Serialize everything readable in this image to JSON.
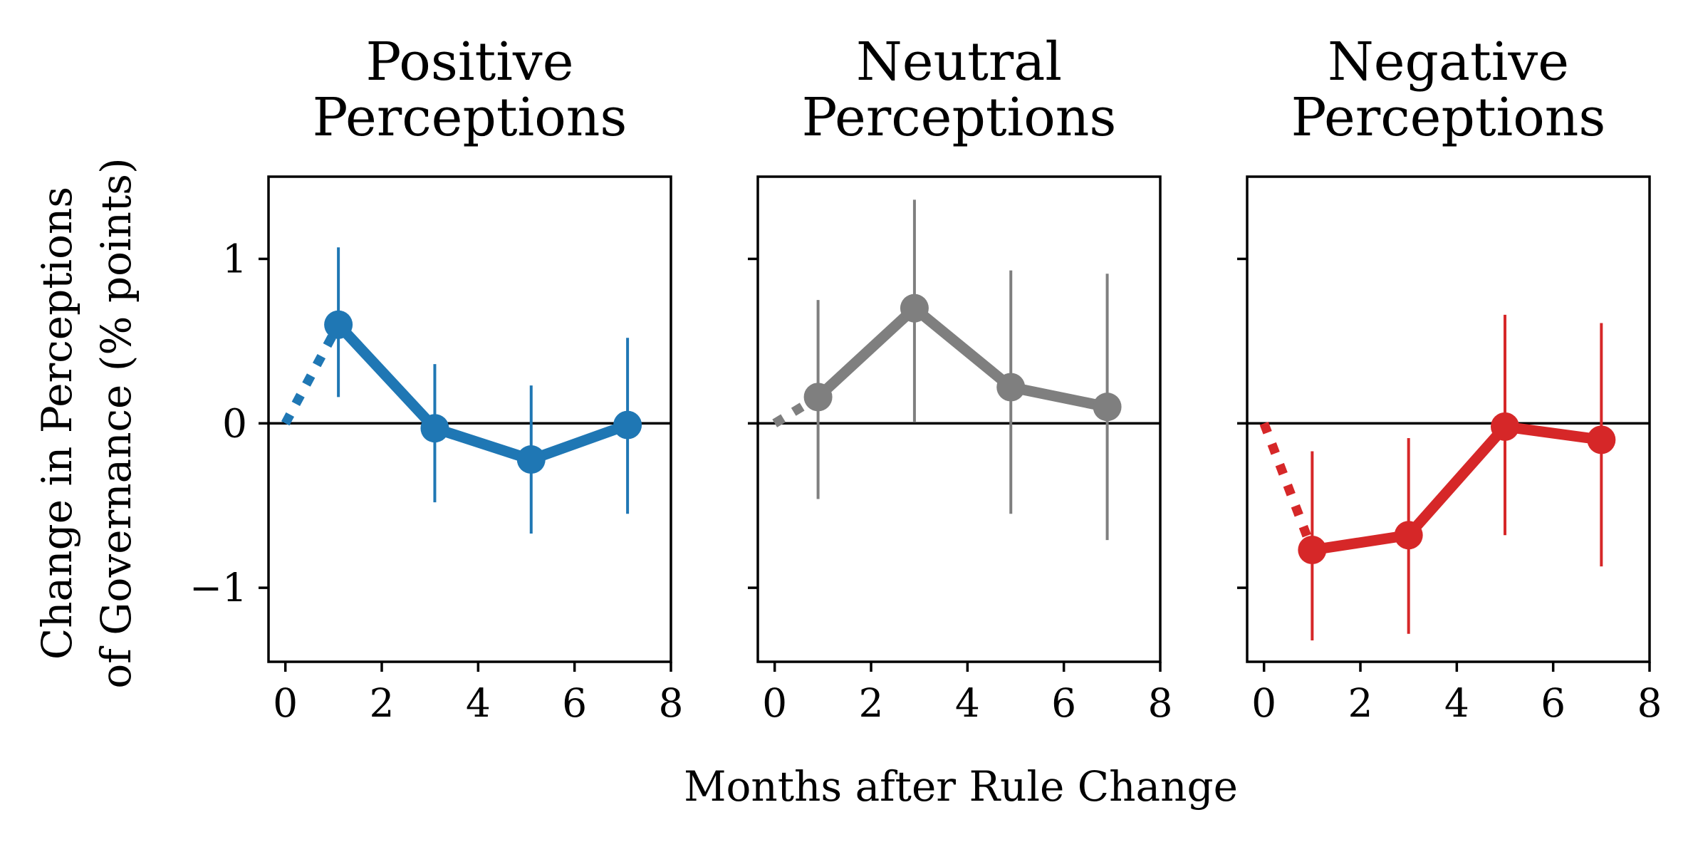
{
  "chart_data": {
    "type": "line",
    "xlabel": "Months after Rule Change",
    "ylabel_lines": [
      "Change in Perceptions",
      "of Governance (% points)"
    ],
    "xlim": [
      -0.35,
      8
    ],
    "ylim": [
      -1.45,
      1.5
    ],
    "xticks": [
      0,
      2,
      4,
      6,
      8
    ],
    "yticks": [
      1,
      0,
      -1
    ],
    "ytick_labels": [
      "1",
      "0",
      "−1"
    ],
    "reference_line_y": 0,
    "grid": false,
    "panels": [
      {
        "title_lines": [
          "Positive",
          "Perceptions"
        ],
        "color": "#1f77b4",
        "origin": {
          "x": 0,
          "y": 0
        },
        "points": [
          {
            "x": 1.1,
            "y": 0.6,
            "lo": 0.16,
            "hi": 1.07
          },
          {
            "x": 3.1,
            "y": -0.03,
            "lo": -0.48,
            "hi": 0.36
          },
          {
            "x": 5.1,
            "y": -0.22,
            "lo": -0.67,
            "hi": 0.23
          },
          {
            "x": 7.1,
            "y": -0.01,
            "lo": -0.55,
            "hi": 0.52
          }
        ]
      },
      {
        "title_lines": [
          "Neutral",
          "Perceptions"
        ],
        "color": "#7f7f7f",
        "origin": {
          "x": 0,
          "y": 0
        },
        "points": [
          {
            "x": 0.9,
            "y": 0.16,
            "lo": -0.46,
            "hi": 0.75
          },
          {
            "x": 2.9,
            "y": 0.7,
            "lo": 0.01,
            "hi": 1.36
          },
          {
            "x": 4.9,
            "y": 0.22,
            "lo": -0.55,
            "hi": 0.93
          },
          {
            "x": 6.9,
            "y": 0.1,
            "lo": -0.71,
            "hi": 0.91
          }
        ]
      },
      {
        "title_lines": [
          "Negative",
          "Perceptions"
        ],
        "color": "#d62728",
        "origin": {
          "x": 0,
          "y": 0
        },
        "points": [
          {
            "x": 1.0,
            "y": -0.77,
            "lo": -1.32,
            "hi": -0.17
          },
          {
            "x": 3.0,
            "y": -0.68,
            "lo": -1.28,
            "hi": -0.09
          },
          {
            "x": 5.0,
            "y": -0.02,
            "lo": -0.68,
            "hi": 0.66
          },
          {
            "x": 7.0,
            "y": -0.1,
            "lo": -0.87,
            "hi": 0.61
          }
        ]
      }
    ]
  }
}
